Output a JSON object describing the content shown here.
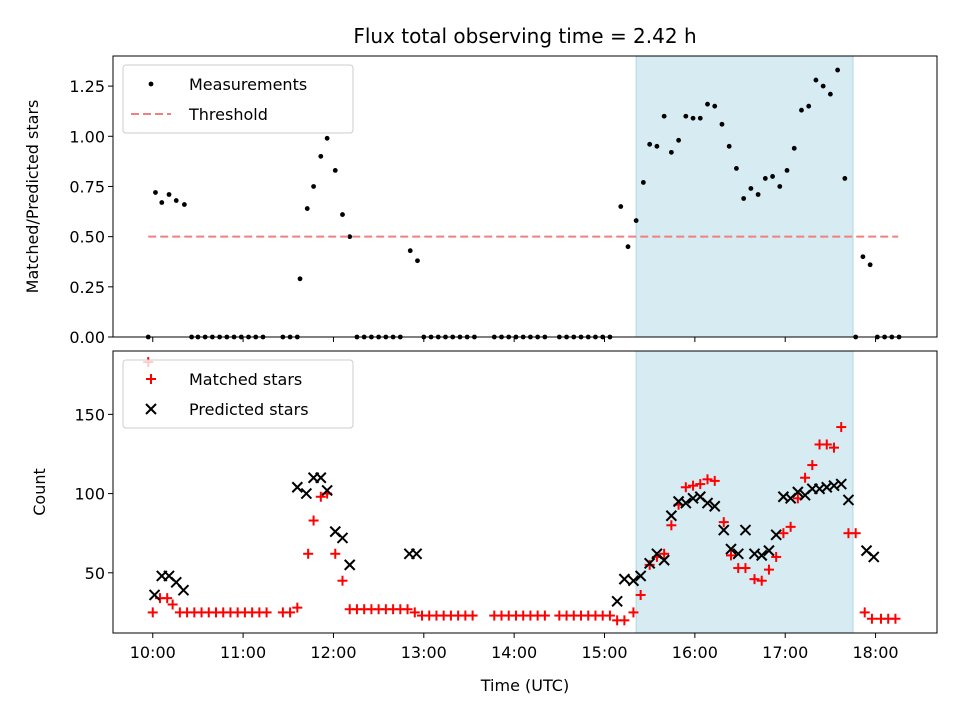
{
  "chart_data": [
    {
      "type": "scatter",
      "title": "Flux total observing time = 2.42 h",
      "ylabel": "Matched/Predicted stars",
      "xlabel": "",
      "xlim": [
        9.56,
        18.68
      ],
      "ylim": [
        0.0,
        1.4
      ],
      "yticks": [
        0.0,
        0.25,
        0.5,
        0.75,
        1.0,
        1.25
      ],
      "ytick_labels": [
        "0.00",
        "0.25",
        "0.50",
        "0.75",
        "1.00",
        "1.25"
      ],
      "shaded_interval": [
        15.35,
        17.75
      ],
      "legend": [
        "Measurements",
        "Threshold"
      ],
      "legend_position": "upper-left",
      "threshold": {
        "name": "Threshold",
        "value": 0.5,
        "x_start": 9.95,
        "x_end": 18.25,
        "color": "#f08080",
        "style": "dashed"
      },
      "series": [
        {
          "name": "Measurements",
          "marker": "dot",
          "color": "#000000",
          "points": [
            [
              9.95,
              0.0
            ],
            [
              10.03,
              0.72
            ],
            [
              10.1,
              0.67
            ],
            [
              10.18,
              0.71
            ],
            [
              10.26,
              0.68
            ],
            [
              10.35,
              0.66
            ],
            [
              10.43,
              0.0
            ],
            [
              10.5,
              0.0
            ],
            [
              10.58,
              0.0
            ],
            [
              10.66,
              0.0
            ],
            [
              10.74,
              0.0
            ],
            [
              10.82,
              0.0
            ],
            [
              10.9,
              0.0
            ],
            [
              10.98,
              0.0
            ],
            [
              11.06,
              0.0
            ],
            [
              11.14,
              0.0
            ],
            [
              11.22,
              0.0
            ],
            [
              11.44,
              0.0
            ],
            [
              11.52,
              0.0
            ],
            [
              11.6,
              0.0
            ],
            [
              11.63,
              0.29
            ],
            [
              11.71,
              0.64
            ],
            [
              11.78,
              0.75
            ],
            [
              11.86,
              0.9
            ],
            [
              11.93,
              0.99
            ],
            [
              12.02,
              0.83
            ],
            [
              12.1,
              0.61
            ],
            [
              12.18,
              0.5
            ],
            [
              12.26,
              0.0
            ],
            [
              12.34,
              0.0
            ],
            [
              12.42,
              0.0
            ],
            [
              12.5,
              0.0
            ],
            [
              12.58,
              0.0
            ],
            [
              12.66,
              0.0
            ],
            [
              12.74,
              0.0
            ],
            [
              12.85,
              0.43
            ],
            [
              12.93,
              0.38
            ],
            [
              13.0,
              0.0
            ],
            [
              13.08,
              0.0
            ],
            [
              13.16,
              0.0
            ],
            [
              13.24,
              0.0
            ],
            [
              13.32,
              0.0
            ],
            [
              13.4,
              0.0
            ],
            [
              13.48,
              0.0
            ],
            [
              13.56,
              0.0
            ],
            [
              13.78,
              0.0
            ],
            [
              13.86,
              0.0
            ],
            [
              13.94,
              0.0
            ],
            [
              14.02,
              0.0
            ],
            [
              14.1,
              0.0
            ],
            [
              14.18,
              0.0
            ],
            [
              14.26,
              0.0
            ],
            [
              14.34,
              0.0
            ],
            [
              14.5,
              0.0
            ],
            [
              14.58,
              0.0
            ],
            [
              14.66,
              0.0
            ],
            [
              14.74,
              0.0
            ],
            [
              14.82,
              0.0
            ],
            [
              14.9,
              0.0
            ],
            [
              14.98,
              0.0
            ],
            [
              15.06,
              0.0
            ],
            [
              15.18,
              0.65
            ],
            [
              15.26,
              0.45
            ],
            [
              15.35,
              0.58
            ],
            [
              15.43,
              0.77
            ],
            [
              15.5,
              0.96
            ],
            [
              15.58,
              0.95
            ],
            [
              15.66,
              1.1
            ],
            [
              15.74,
              0.92
            ],
            [
              15.82,
              0.98
            ],
            [
              15.9,
              1.1
            ],
            [
              15.98,
              1.09
            ],
            [
              16.06,
              1.09
            ],
            [
              16.14,
              1.16
            ],
            [
              16.22,
              1.15
            ],
            [
              16.3,
              1.06
            ],
            [
              16.38,
              0.95
            ],
            [
              16.46,
              0.84
            ],
            [
              16.54,
              0.69
            ],
            [
              16.62,
              0.74
            ],
            [
              16.7,
              0.71
            ],
            [
              16.78,
              0.79
            ],
            [
              16.86,
              0.8
            ],
            [
              16.94,
              0.75
            ],
            [
              17.02,
              0.83
            ],
            [
              17.1,
              0.94
            ],
            [
              17.18,
              1.13
            ],
            [
              17.26,
              1.15
            ],
            [
              17.34,
              1.28
            ],
            [
              17.42,
              1.25
            ],
            [
              17.5,
              1.21
            ],
            [
              17.58,
              1.33
            ],
            [
              17.66,
              0.79
            ],
            [
              17.78,
              0.0
            ],
            [
              17.86,
              0.4
            ],
            [
              17.94,
              0.36
            ],
            [
              18.02,
              0.0
            ],
            [
              18.1,
              0.0
            ],
            [
              18.18,
              0.0
            ],
            [
              18.26,
              0.0
            ]
          ]
        }
      ]
    },
    {
      "type": "scatter",
      "title": "",
      "xlabel": "Time (UTC)",
      "ylabel": "Count",
      "xlim": [
        9.56,
        18.68
      ],
      "ylim": [
        12,
        190
      ],
      "xticks": [
        10,
        11,
        12,
        13,
        14,
        15,
        16,
        17,
        18
      ],
      "xtick_labels": [
        "10:00",
        "11:00",
        "12:00",
        "13:00",
        "14:00",
        "15:00",
        "16:00",
        "17:00",
        "18:00"
      ],
      "yticks": [
        50,
        100,
        150
      ],
      "ytick_labels": [
        "50",
        "100",
        "150"
      ],
      "shaded_interval": [
        15.35,
        17.75
      ],
      "legend": [
        "Matched stars",
        "Predicted stars"
      ],
      "legend_position": "upper-left",
      "series": [
        {
          "name": "Matched stars",
          "marker": "plus",
          "color": "#ff0000",
          "points": [
            [
              9.95,
              183
            ],
            [
              10.0,
              25
            ],
            [
              10.08,
              34
            ],
            [
              10.16,
              34
            ],
            [
              10.22,
              30
            ],
            [
              10.3,
              25
            ],
            [
              10.38,
              25
            ],
            [
              10.46,
              25
            ],
            [
              10.54,
              25
            ],
            [
              10.62,
              25
            ],
            [
              10.7,
              25
            ],
            [
              10.78,
              25
            ],
            [
              10.86,
              25
            ],
            [
              10.94,
              25
            ],
            [
              11.02,
              25
            ],
            [
              11.1,
              25
            ],
            [
              11.18,
              25
            ],
            [
              11.26,
              25
            ],
            [
              11.44,
              25
            ],
            [
              11.52,
              25
            ],
            [
              11.6,
              28
            ],
            [
              11.72,
              62
            ],
            [
              11.78,
              83
            ],
            [
              11.86,
              98
            ],
            [
              11.93,
              100
            ],
            [
              12.02,
              62
            ],
            [
              12.1,
              45
            ],
            [
              12.18,
              27
            ],
            [
              12.26,
              27
            ],
            [
              12.34,
              27
            ],
            [
              12.42,
              27
            ],
            [
              12.5,
              27
            ],
            [
              12.58,
              27
            ],
            [
              12.66,
              27
            ],
            [
              12.74,
              27
            ],
            [
              12.82,
              27
            ],
            [
              12.9,
              25
            ],
            [
              12.98,
              23
            ],
            [
              13.06,
              23
            ],
            [
              13.14,
              23
            ],
            [
              13.22,
              23
            ],
            [
              13.3,
              23
            ],
            [
              13.38,
              23
            ],
            [
              13.46,
              23
            ],
            [
              13.54,
              23
            ],
            [
              13.78,
              23
            ],
            [
              13.86,
              23
            ],
            [
              13.94,
              23
            ],
            [
              14.02,
              23
            ],
            [
              14.1,
              23
            ],
            [
              14.18,
              23
            ],
            [
              14.26,
              23
            ],
            [
              14.34,
              23
            ],
            [
              14.5,
              23
            ],
            [
              14.58,
              23
            ],
            [
              14.66,
              23
            ],
            [
              14.74,
              23
            ],
            [
              14.82,
              23
            ],
            [
              14.9,
              23
            ],
            [
              14.98,
              23
            ],
            [
              15.06,
              23
            ],
            [
              15.14,
              20
            ],
            [
              15.22,
              20
            ],
            [
              15.32,
              25
            ],
            [
              15.4,
              36
            ],
            [
              15.5,
              55
            ],
            [
              15.58,
              60
            ],
            [
              15.66,
              62
            ],
            [
              15.74,
              80
            ],
            [
              15.82,
              93
            ],
            [
              15.9,
              104
            ],
            [
              15.98,
              105
            ],
            [
              16.06,
              106
            ],
            [
              16.14,
              109
            ],
            [
              16.22,
              108
            ],
            [
              16.32,
              82
            ],
            [
              16.4,
              61
            ],
            [
              16.48,
              53
            ],
            [
              16.56,
              53
            ],
            [
              16.66,
              46
            ],
            [
              16.74,
              45
            ],
            [
              16.82,
              52
            ],
            [
              16.9,
              60
            ],
            [
              16.98,
              75
            ],
            [
              17.06,
              79
            ],
            [
              17.14,
              97
            ],
            [
              17.22,
              110
            ],
            [
              17.3,
              118
            ],
            [
              17.38,
              131
            ],
            [
              17.46,
              131
            ],
            [
              17.54,
              129
            ],
            [
              17.62,
              142
            ],
            [
              17.7,
              75
            ],
            [
              17.78,
              75
            ],
            [
              17.88,
              25
            ],
            [
              17.96,
              21
            ],
            [
              18.06,
              21
            ],
            [
              18.14,
              21
            ],
            [
              18.22,
              21
            ]
          ]
        },
        {
          "name": "Predicted stars",
          "marker": "x",
          "color": "#000000",
          "points": [
            [
              10.02,
              36
            ],
            [
              10.1,
              48
            ],
            [
              10.18,
              48
            ],
            [
              10.26,
              44
            ],
            [
              10.34,
              39
            ],
            [
              11.6,
              104
            ],
            [
              11.7,
              100
            ],
            [
              11.78,
              110
            ],
            [
              11.86,
              110
            ],
            [
              11.93,
              102
            ],
            [
              12.02,
              76
            ],
            [
              12.1,
              72
            ],
            [
              12.18,
              55
            ],
            [
              12.84,
              62
            ],
            [
              12.92,
              62
            ],
            [
              15.14,
              32
            ],
            [
              15.22,
              46
            ],
            [
              15.32,
              45
            ],
            [
              15.4,
              48
            ],
            [
              15.5,
              56
            ],
            [
              15.58,
              62
            ],
            [
              15.66,
              58
            ],
            [
              15.74,
              86
            ],
            [
              15.82,
              95
            ],
            [
              15.9,
              94
            ],
            [
              15.98,
              97
            ],
            [
              16.06,
              98
            ],
            [
              16.14,
              94
            ],
            [
              16.22,
              92
            ],
            [
              16.32,
              77
            ],
            [
              16.4,
              65
            ],
            [
              16.48,
              62
            ],
            [
              16.56,
              77
            ],
            [
              16.66,
              62
            ],
            [
              16.74,
              61
            ],
            [
              16.82,
              64
            ],
            [
              16.9,
              74
            ],
            [
              16.98,
              98
            ],
            [
              17.06,
              97
            ],
            [
              17.14,
              101
            ],
            [
              17.22,
              99
            ],
            [
              17.3,
              103
            ],
            [
              17.38,
              103
            ],
            [
              17.46,
              104
            ],
            [
              17.54,
              105
            ],
            [
              17.62,
              106
            ],
            [
              17.7,
              96
            ],
            [
              17.9,
              64
            ],
            [
              17.98,
              60
            ]
          ]
        }
      ]
    }
  ]
}
